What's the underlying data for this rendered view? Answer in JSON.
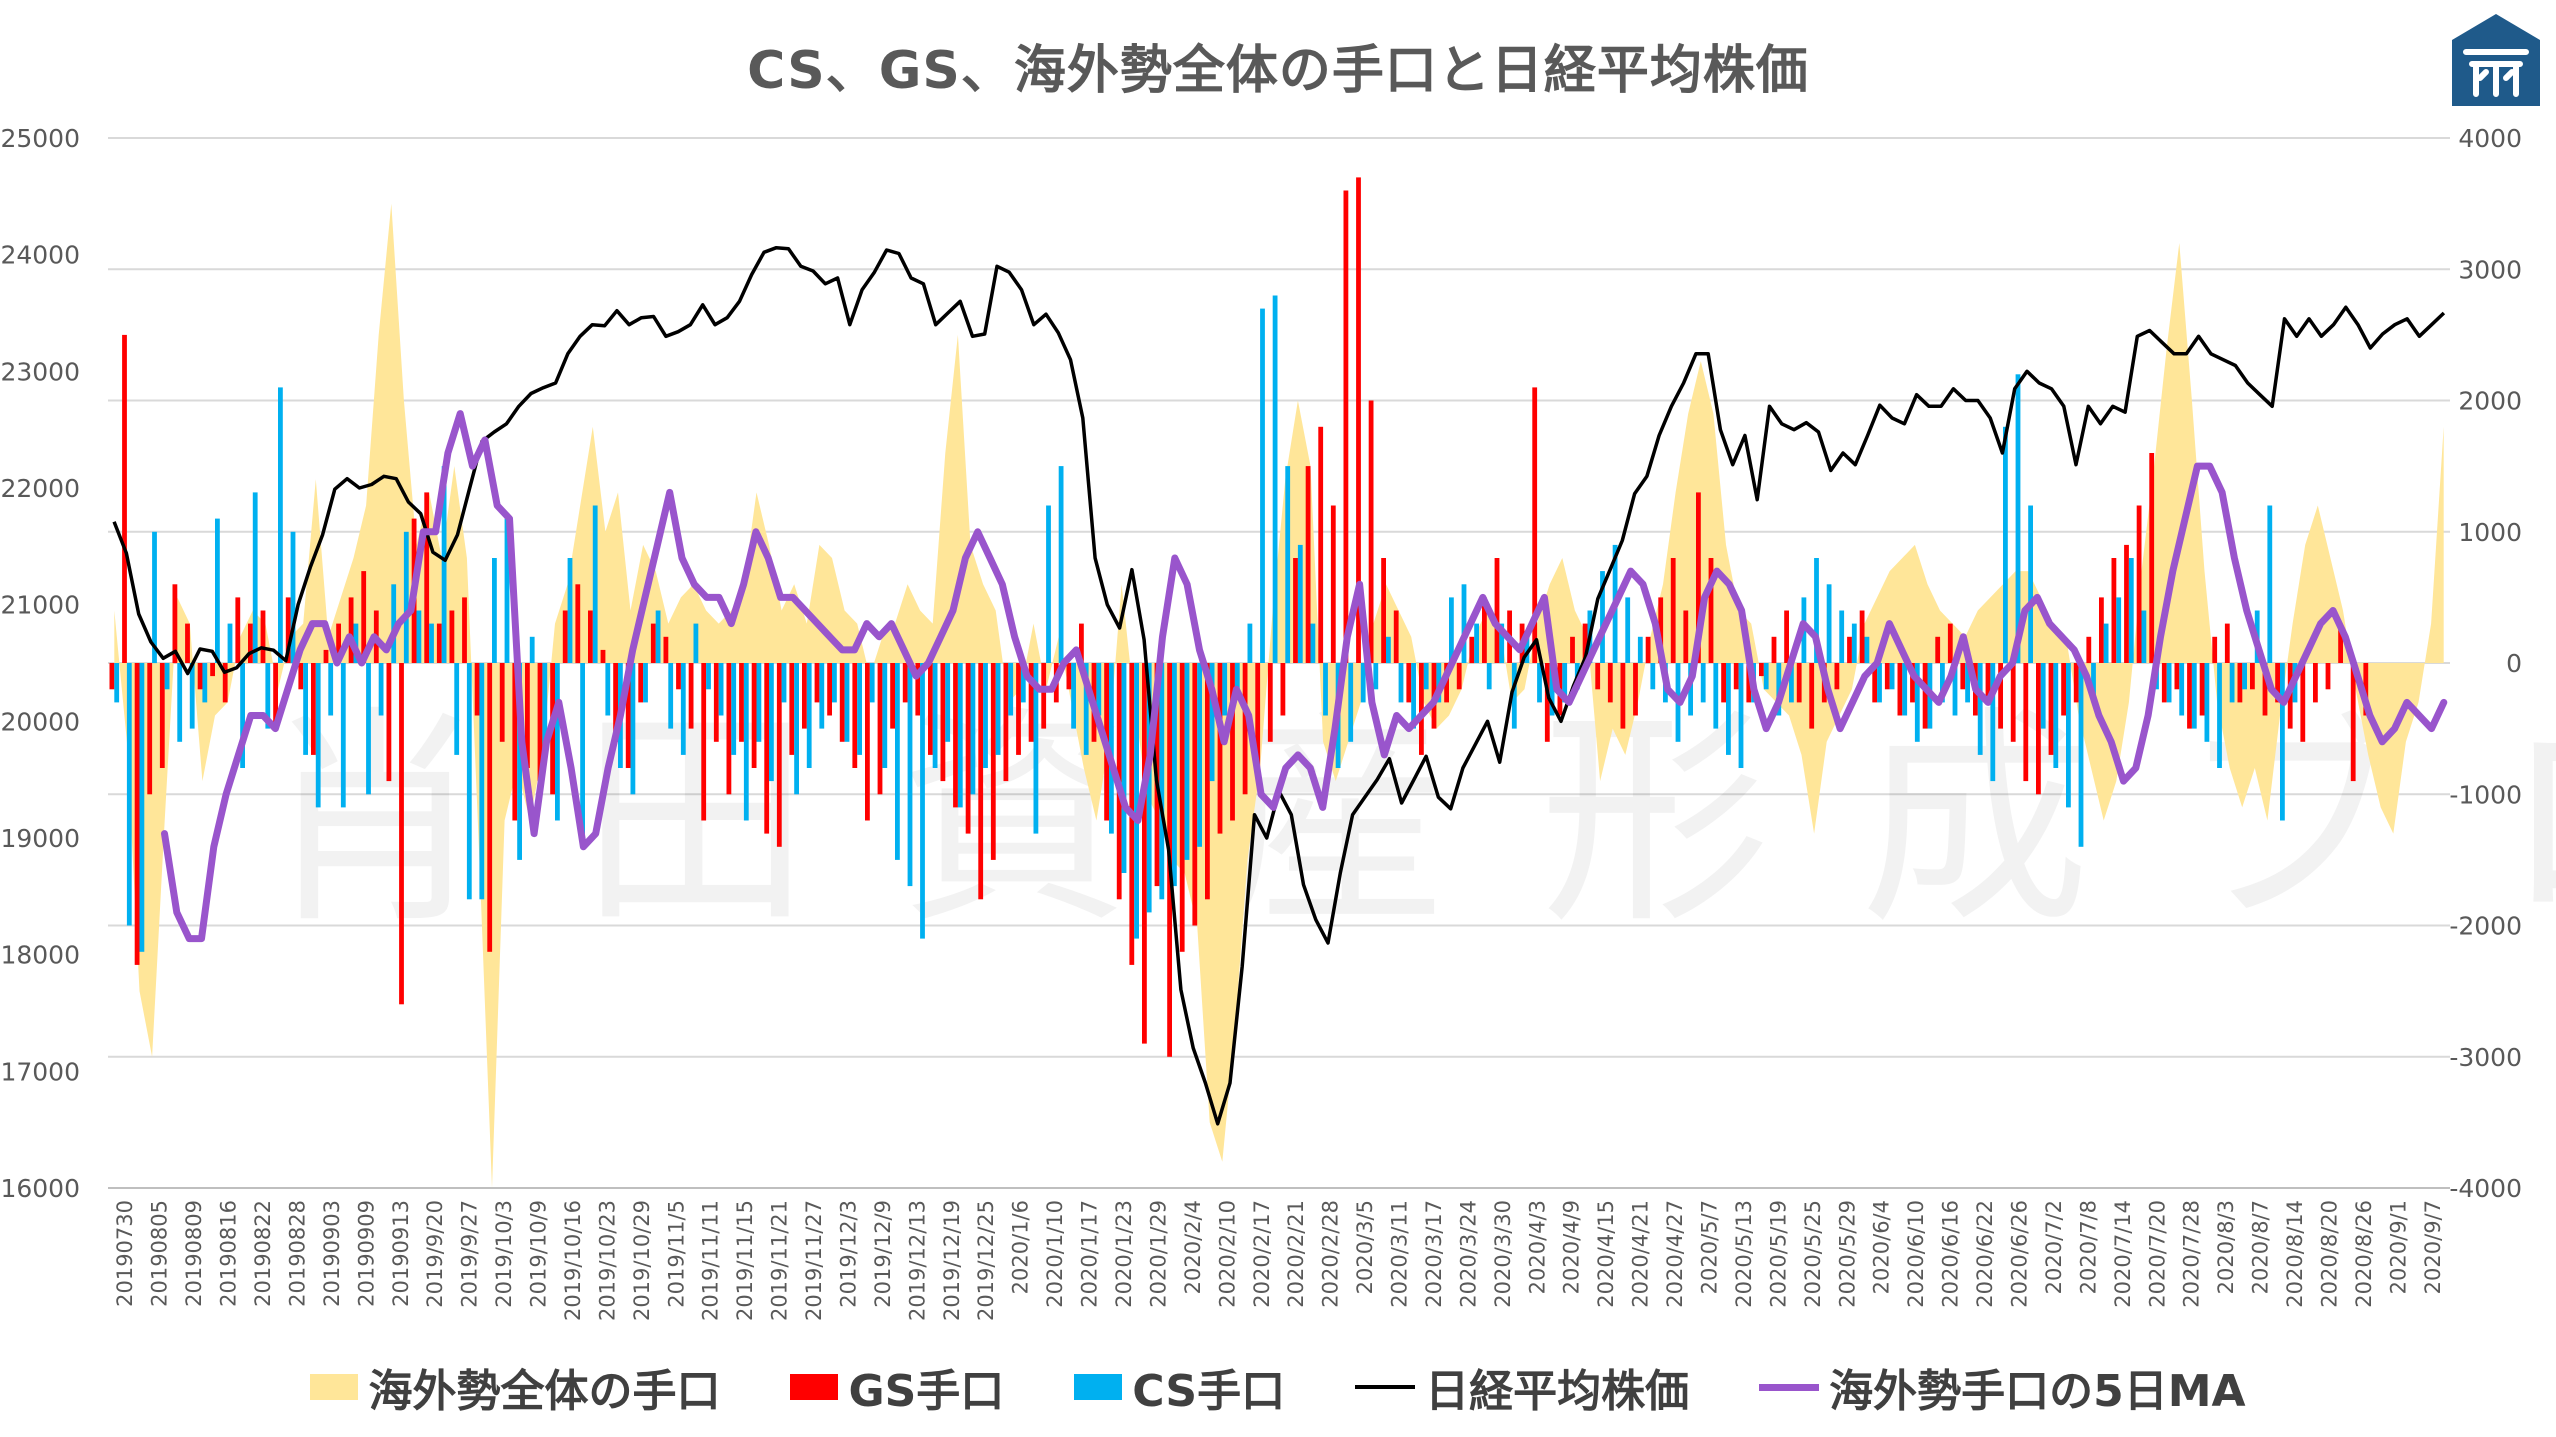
{
  "title": "CS、GS、海外勢全体の手口と日経平均株価",
  "watermark": "肖田資産形成ブログ",
  "colors": {
    "overseas_total": "#FFE699",
    "gs": "#FF0000",
    "cs": "#00B0F0",
    "nikkei": "#000000",
    "ma5": "#9955CC",
    "grid": "#D9D9D9",
    "axis_text": "#595959",
    "logo": "#1F5A8A"
  },
  "legend": {
    "overseas_total": "海外勢全体の手口",
    "gs": "GS手口",
    "cs": "CS手口",
    "nikkei": "日経平均株価",
    "ma5": "海外勢手口の5日MA"
  },
  "chart_data": {
    "type": "bar",
    "xlabels": [
      "20190730",
      "20190805",
      "20190809",
      "20190816",
      "20190822",
      "20190828",
      "20190903",
      "20190909",
      "20190913",
      "2019/9/20",
      "2019/9/27",
      "2019/10/3",
      "2019/10/9",
      "2019/10/16",
      "2019/10/23",
      "2019/10/29",
      "2019/11/5",
      "2019/11/11",
      "2019/11/15",
      "2019/11/21",
      "2019/11/27",
      "2019/12/3",
      "2019/12/9",
      "2019/12/13",
      "2019/12/19",
      "2019/12/25",
      "2020/1/6",
      "2020/1/10",
      "2020/1/17",
      "2020/1/23",
      "2020/1/29",
      "2020/2/4",
      "2020/2/10",
      "2020/2/17",
      "2020/2/21",
      "2020/2/28",
      "2020/3/5",
      "2020/3/11",
      "2020/3/17",
      "2020/3/24",
      "2020/3/30",
      "2020/4/3",
      "2020/4/9",
      "2020/4/15",
      "2020/4/21",
      "2020/4/27",
      "2020/5/7",
      "2020/5/13",
      "2020/5/19",
      "2020/5/25",
      "2020/5/29",
      "2020/6/4",
      "2020/6/10",
      "2020/6/16",
      "2020/6/22",
      "2020/6/26",
      "2020/7/2",
      "2020/7/8",
      "2020/7/14",
      "2020/7/20",
      "2020/7/28",
      "2020/8/3",
      "2020/8/7",
      "2020/8/14",
      "2020/8/20",
      "2020/8/26",
      "2020/9/1",
      "2020/9/7"
    ],
    "y_left": {
      "min": 16000,
      "max": 25000,
      "ticks": [
        "25000",
        "24000",
        "23000",
        "22000",
        "21000",
        "20000",
        "19000",
        "18000",
        "17000",
        "16000"
      ]
    },
    "y_right": {
      "min": -4000,
      "max": 4000,
      "ticks": [
        "4000",
        "3000",
        "2000",
        "1000",
        "0",
        "-1000",
        "-2000",
        "-3000",
        "-4000"
      ]
    },
    "nikkei": [
      21710,
      21440,
      20920,
      20680,
      20540,
      20600,
      20410,
      20620,
      20600,
      20420,
      20460,
      20580,
      20630,
      20610,
      20520,
      21000,
      21320,
      21600,
      21990,
      22080,
      22000,
      22030,
      22100,
      22080,
      21880,
      21780,
      21450,
      21380,
      21600,
      22000,
      22400,
      22480,
      22550,
      22700,
      22810,
      22860,
      22900,
      23150,
      23300,
      23400,
      23390,
      23520,
      23400,
      23460,
      23470,
      23300,
      23340,
      23400,
      23570,
      23400,
      23460,
      23600,
      23830,
      24020,
      24060,
      24050,
      23900,
      23860,
      23750,
      23800,
      23400,
      23700,
      23850,
      24040,
      24010,
      23800,
      23750,
      23400,
      23500,
      23600,
      23300,
      23320,
      23900,
      23850,
      23700,
      23400,
      23490,
      23330,
      23100,
      22600,
      21400,
      21000,
      20800,
      21300,
      20700,
      19500,
      18900,
      17700,
      17200,
      16900,
      16550,
      16900,
      17900,
      19200,
      19000,
      19400,
      19200,
      18600,
      18300,
      18100,
      18700,
      19200,
      19350,
      19500,
      19680,
      19300,
      19500,
      19700,
      19350,
      19250,
      19600,
      19800,
      20000,
      19650,
      20250,
      20550,
      20700,
      20200,
      20000,
      20300,
      20550,
      21050,
      21300,
      21550,
      21950,
      22100,
      22450,
      22700,
      22900,
      23150,
      23150,
      22500,
      22200,
      22450,
      21900,
      22700,
      22550,
      22500,
      22560,
      22480,
      22150,
      22300,
      22200,
      22450,
      22710,
      22600,
      22550,
      22800,
      22700,
      22700,
      22850,
      22750,
      22750,
      22600,
      22300,
      22850,
      23000,
      22900,
      22850,
      22700,
      22200,
      22700,
      22550,
      22700,
      22650,
      23300,
      23350,
      23250,
      23150,
      23150,
      23300,
      23150,
      23100,
      23050,
      22900,
      22800,
      22700,
      23450,
      23300,
      23450,
      23300,
      23400,
      23550,
      23400,
      23200,
      23320,
      23400,
      23450,
      23300,
      23400,
      23500
    ],
    "overseas_total": [
      400,
      -600,
      -2500,
      -3000,
      -1200,
      500,
      300,
      -900,
      -400,
      -300,
      200,
      400,
      300,
      -200,
      200,
      300,
      1400,
      200,
      500,
      800,
      1200,
      2500,
      3500,
      2000,
      900,
      1300,
      800,
      1500,
      800,
      -1500,
      -4000,
      -1200,
      -800,
      -1200,
      -700,
      300,
      600,
      1200,
      1800,
      1000,
      1300,
      400,
      900,
      700,
      300,
      500,
      600,
      400,
      300,
      400,
      600,
      1300,
      900,
      400,
      600,
      300,
      900,
      800,
      400,
      300,
      -100,
      200,
      300,
      600,
      400,
      300,
      1600,
      2500,
      900,
      600,
      400,
      -300,
      -200,
      300,
      -200,
      200,
      -300,
      -800,
      -1200,
      -600,
      600,
      -300,
      -1000,
      -1200,
      -1500,
      -1600,
      -2000,
      -3500,
      -3800,
      -2800,
      -1500,
      -800,
      400,
      1400,
      2000,
      1500,
      -600,
      -900,
      -600,
      -300,
      300,
      600,
      400,
      200,
      -300,
      -500,
      -400,
      -200,
      200,
      400,
      300,
      -300,
      -200,
      300,
      600,
      800,
      400,
      200,
      -900,
      -500,
      -700,
      -300,
      200,
      600,
      1300,
      1900,
      2300,
      1900,
      900,
      400,
      300,
      -200,
      -300,
      -400,
      -700,
      -1300,
      -600,
      -400,
      -200,
      300,
      500,
      700,
      800,
      900,
      600,
      400,
      300,
      200,
      400,
      500,
      600,
      700,
      700,
      500,
      300,
      200,
      -400,
      -800,
      -1200,
      -900,
      -300,
      700,
      1500,
      2400,
      3200,
      2000,
      700,
      -300,
      -800,
      -1100,
      -800,
      -1200,
      -400,
      300,
      900,
      1200,
      800,
      400,
      -200,
      -700,
      -1100,
      -1300,
      -600,
      -300,
      300,
      1800
    ],
    "gs": [
      -200,
      2500,
      -2300,
      -1000,
      -800,
      600,
      300,
      -200,
      -100,
      -300,
      500,
      300,
      400,
      -500,
      500,
      -200,
      -700,
      100,
      300,
      500,
      700,
      400,
      -900,
      -2600,
      1100,
      1300,
      300,
      400,
      500,
      -400,
      -2200,
      -600,
      -1200,
      -800,
      -900,
      -1000,
      400,
      600,
      400,
      100,
      -600,
      -800,
      -300,
      300,
      200,
      -200,
      -500,
      -1200,
      -600,
      -1000,
      -600,
      -800,
      -1300,
      -1400,
      -700,
      -500,
      -300,
      -400,
      -600,
      -800,
      -1200,
      -1000,
      -500,
      -300,
      -400,
      -700,
      -900,
      -1100,
      -1300,
      -1800,
      -1500,
      -900,
      -700,
      -600,
      -500,
      -300,
      -200,
      300,
      -600,
      -1200,
      -1800,
      -2300,
      -2900,
      -1700,
      -3000,
      -2200,
      -2000,
      -1800,
      -1300,
      -1200,
      -1000,
      -800,
      -600,
      -400,
      800,
      1500,
      1800,
      1200,
      3600,
      3700,
      2000,
      800,
      400,
      -300,
      -700,
      -500,
      -300,
      -200,
      200,
      500,
      800,
      400,
      300,
      2100,
      -600,
      -400,
      200,
      300,
      -200,
      -300,
      -500,
      -400,
      200,
      500,
      800,
      400,
      1300,
      800,
      -300,
      -200,
      -300,
      -100,
      200,
      400,
      -300,
      -500,
      -300,
      -200,
      200,
      400,
      -300,
      -200,
      -400,
      -300,
      -500,
      200,
      300,
      -200,
      -400,
      -300,
      -500,
      -600,
      -900,
      -1000,
      -700,
      -400,
      -300,
      200,
      500,
      800,
      900,
      1200,
      1600,
      -300,
      -200,
      -500,
      -400,
      200,
      300,
      -300,
      -200,
      -400,
      -300,
      -500,
      -600,
      -300,
      -200,
      300,
      -900,
      -400
    ],
    "cs": [
      -300,
      -2000,
      -2200,
      1000,
      -200,
      -600,
      -500,
      -300,
      1100,
      300,
      -800,
      1300,
      -500,
      2100,
      1000,
      -700,
      -1100,
      -400,
      -1100,
      300,
      -1000,
      -400,
      600,
      1000,
      400,
      300,
      1500,
      -700,
      -1800,
      -1800,
      800,
      1100,
      -1500,
      200,
      -700,
      -1200,
      800,
      -1400,
      1200,
      -400,
      -800,
      -1000,
      -300,
      400,
      -500,
      -700,
      300,
      -200,
      -400,
      -700,
      -1200,
      -600,
      -900,
      -300,
      -1000,
      -800,
      -500,
      -300,
      -600,
      -700,
      -300,
      -800,
      -1500,
      -1700,
      -2100,
      -800,
      -600,
      -1100,
      -1000,
      -800,
      -700,
      -400,
      -300,
      -1300,
      1200,
      1500,
      -500,
      -700,
      -400,
      -1300,
      -1600,
      -2100,
      -1900,
      -1800,
      -1700,
      -1500,
      -1400,
      -900,
      -400,
      -200,
      300,
      2700,
      2800,
      1500,
      900,
      300,
      -400,
      -800,
      -600,
      -300,
      -200,
      200,
      -300,
      -500,
      -200,
      -300,
      500,
      600,
      300,
      -200,
      300,
      -500,
      200,
      -300,
      -400,
      -300,
      -200,
      400,
      700,
      900,
      500,
      200,
      -200,
      -300,
      -600,
      -400,
      -300,
      -500,
      -700,
      -800,
      -300,
      -200,
      -400,
      -300,
      500,
      800,
      600,
      400,
      300,
      200,
      -300,
      -200,
      -400,
      -600,
      -500,
      -300,
      -400,
      -300,
      -700,
      -900,
      1800,
      2200,
      1200,
      -500,
      -800,
      -1100,
      -1400,
      -300,
      300,
      500,
      800,
      400,
      -200,
      -300,
      -400,
      -500,
      -600,
      -800,
      -300,
      -200,
      400,
      1200,
      -1200,
      -300
    ],
    "ma5": [
      -1300,
      -1900,
      -2100,
      -2100,
      -1400,
      -1000,
      -700,
      -400,
      -400,
      -500,
      -200,
      100,
      300,
      300,
      0,
      200,
      0,
      200,
      100,
      300,
      400,
      1000,
      1000,
      1600,
      1900,
      1500,
      1700,
      1200,
      1100,
      -600,
      -1300,
      -600,
      -300,
      -800,
      -1400,
      -1300,
      -800,
      -400,
      100,
      500,
      900,
      1300,
      800,
      600,
      500,
      500,
      300,
      600,
      1000,
      800,
      500,
      500,
      400,
      300,
      200,
      100,
      100,
      300,
      200,
      300,
      100,
      -100,
      0,
      200,
      400,
      800,
      1000,
      800,
      600,
      200,
      -100,
      -200,
      -200,
      0,
      100,
      -200,
      -500,
      -800,
      -1100,
      -1200,
      -700,
      200,
      800,
      600,
      100,
      -200,
      -600,
      -200,
      -400,
      -1000,
      -1100,
      -800,
      -700,
      -800,
      -1100,
      -500,
      200,
      600,
      -300,
      -700,
      -400,
      -500,
      -400,
      -300,
      -100,
      100,
      300,
      500,
      300,
      200,
      100,
      300,
      500,
      -200,
      -300,
      -100,
      100,
      300,
      500,
      700,
      600,
      300,
      -200,
      -300,
      -100,
      500,
      700,
      600,
      400,
      -200,
      -500,
      -300,
      0,
      300,
      200,
      -200,
      -500,
      -300,
      -100,
      0,
      300,
      100,
      -100,
      -200,
      -300,
      -100,
      200,
      -200,
      -300,
      -100,
      0,
      400,
      500,
      300,
      200,
      100,
      -100,
      -400,
      -600,
      -900,
      -800,
      -400,
      200,
      700,
      1100,
      1500,
      1500,
      1300,
      800,
      400,
      100,
      -200,
      -300,
      -100,
      100,
      300,
      400,
      200,
      -100,
      -400,
      -600,
      -500,
      -300,
      -400,
      -500,
      -300
    ]
  }
}
